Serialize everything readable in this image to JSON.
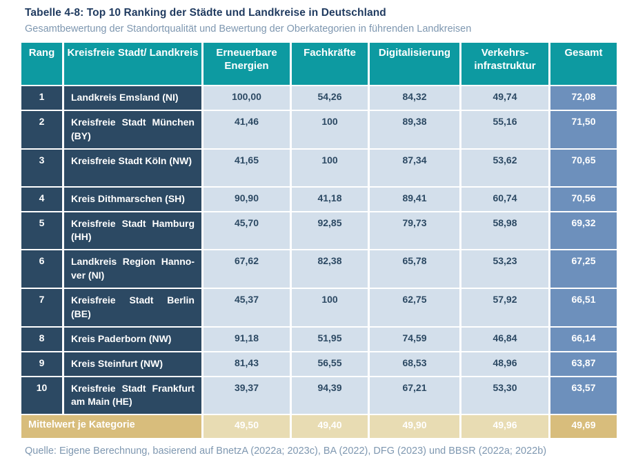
{
  "title": "Tabelle 4-8: Top 10 Ranking der Städte und Landkreise in Deutschland",
  "subtitle": "Gesamtbewertung der Standortqualität und Bewertung der Oberkategorien in führenden Landkreisen",
  "source": "Quelle: Eigene Berechnung, basierend auf BnetzA (2022a; 2023c), BA (2022), DFG (2023) und BBSR (2022a; 2022b)",
  "colors": {
    "header_teal": "#0d9aa1",
    "row_label_navy": "#2c4963",
    "score_cell_blue": "#d3dfeb",
    "gesamt_cell_blue": "#6d90bc",
    "footer_dark_tan": "#d8bd7c",
    "footer_light_tan": "#e8dcb3",
    "title_navy": "#1f3a5f",
    "muted_blue_text": "#7e97b0"
  },
  "table": {
    "columns": [
      "Rang",
      "Kreisfreie Stadt/ Landkreis",
      "Erneuerbare Energien",
      "Fachkräfte",
      "Digitalisierung",
      "Verkehrs­infrastruktur",
      "Gesamt"
    ],
    "rows": [
      {
        "rank": "1",
        "name": "Landkreis Emsland (NI)",
        "values": [
          "100,00",
          "54,26",
          "84,32",
          "49,74"
        ],
        "gesamt": "72,08"
      },
      {
        "rank": "2",
        "name": "Kreisfreie Stadt München (BY)",
        "values": [
          "41,46",
          "100",
          "89,38",
          "55,16"
        ],
        "gesamt": "71,50"
      },
      {
        "rank": "3",
        "name": "Kreisfreie Stadt Köln (NW)",
        "values": [
          "41,65",
          "100",
          "87,34",
          "53,62"
        ],
        "gesamt": "70,65"
      },
      {
        "rank": "4",
        "name": "Kreis Dithmarschen (SH)",
        "values": [
          "90,90",
          "41,18",
          "89,41",
          "60,74"
        ],
        "gesamt": "70,56"
      },
      {
        "rank": "5",
        "name": "Kreisfreie Stadt Hamburg (HH)",
        "values": [
          "45,70",
          "92,85",
          "79,73",
          "58,98"
        ],
        "gesamt": "69,32"
      },
      {
        "rank": "6",
        "name": "Landkreis Region Hanno­ver (NI)",
        "values": [
          "67,62",
          "82,38",
          "65,78",
          "53,23"
        ],
        "gesamt": "67,25"
      },
      {
        "rank": "7",
        "name": "Kreisfreie Stadt Berlin (BE)",
        "values": [
          "45,37",
          "100",
          "62,75",
          "57,92"
        ],
        "gesamt": "66,51"
      },
      {
        "rank": "8",
        "name": "Kreis Paderborn (NW)",
        "values": [
          "91,18",
          "51,95",
          "74,59",
          "46,84"
        ],
        "gesamt": "66,14"
      },
      {
        "rank": "9",
        "name": "Kreis Steinfurt (NW)",
        "values": [
          "81,43",
          "56,55",
          "68,53",
          "48,96"
        ],
        "gesamt": "63,87"
      },
      {
        "rank": "10",
        "name": "Kreisfreie Stadt Frankfurt am Main (HE)",
        "values": [
          "39,37",
          "94,39",
          "67,21",
          "53,30"
        ],
        "gesamt": "63,57"
      }
    ],
    "footer": {
      "label": "Mittelwert je Kategorie",
      "values": [
        "49,50",
        "49,40",
        "49,90",
        "49,96"
      ],
      "gesamt": "49,69"
    }
  }
}
